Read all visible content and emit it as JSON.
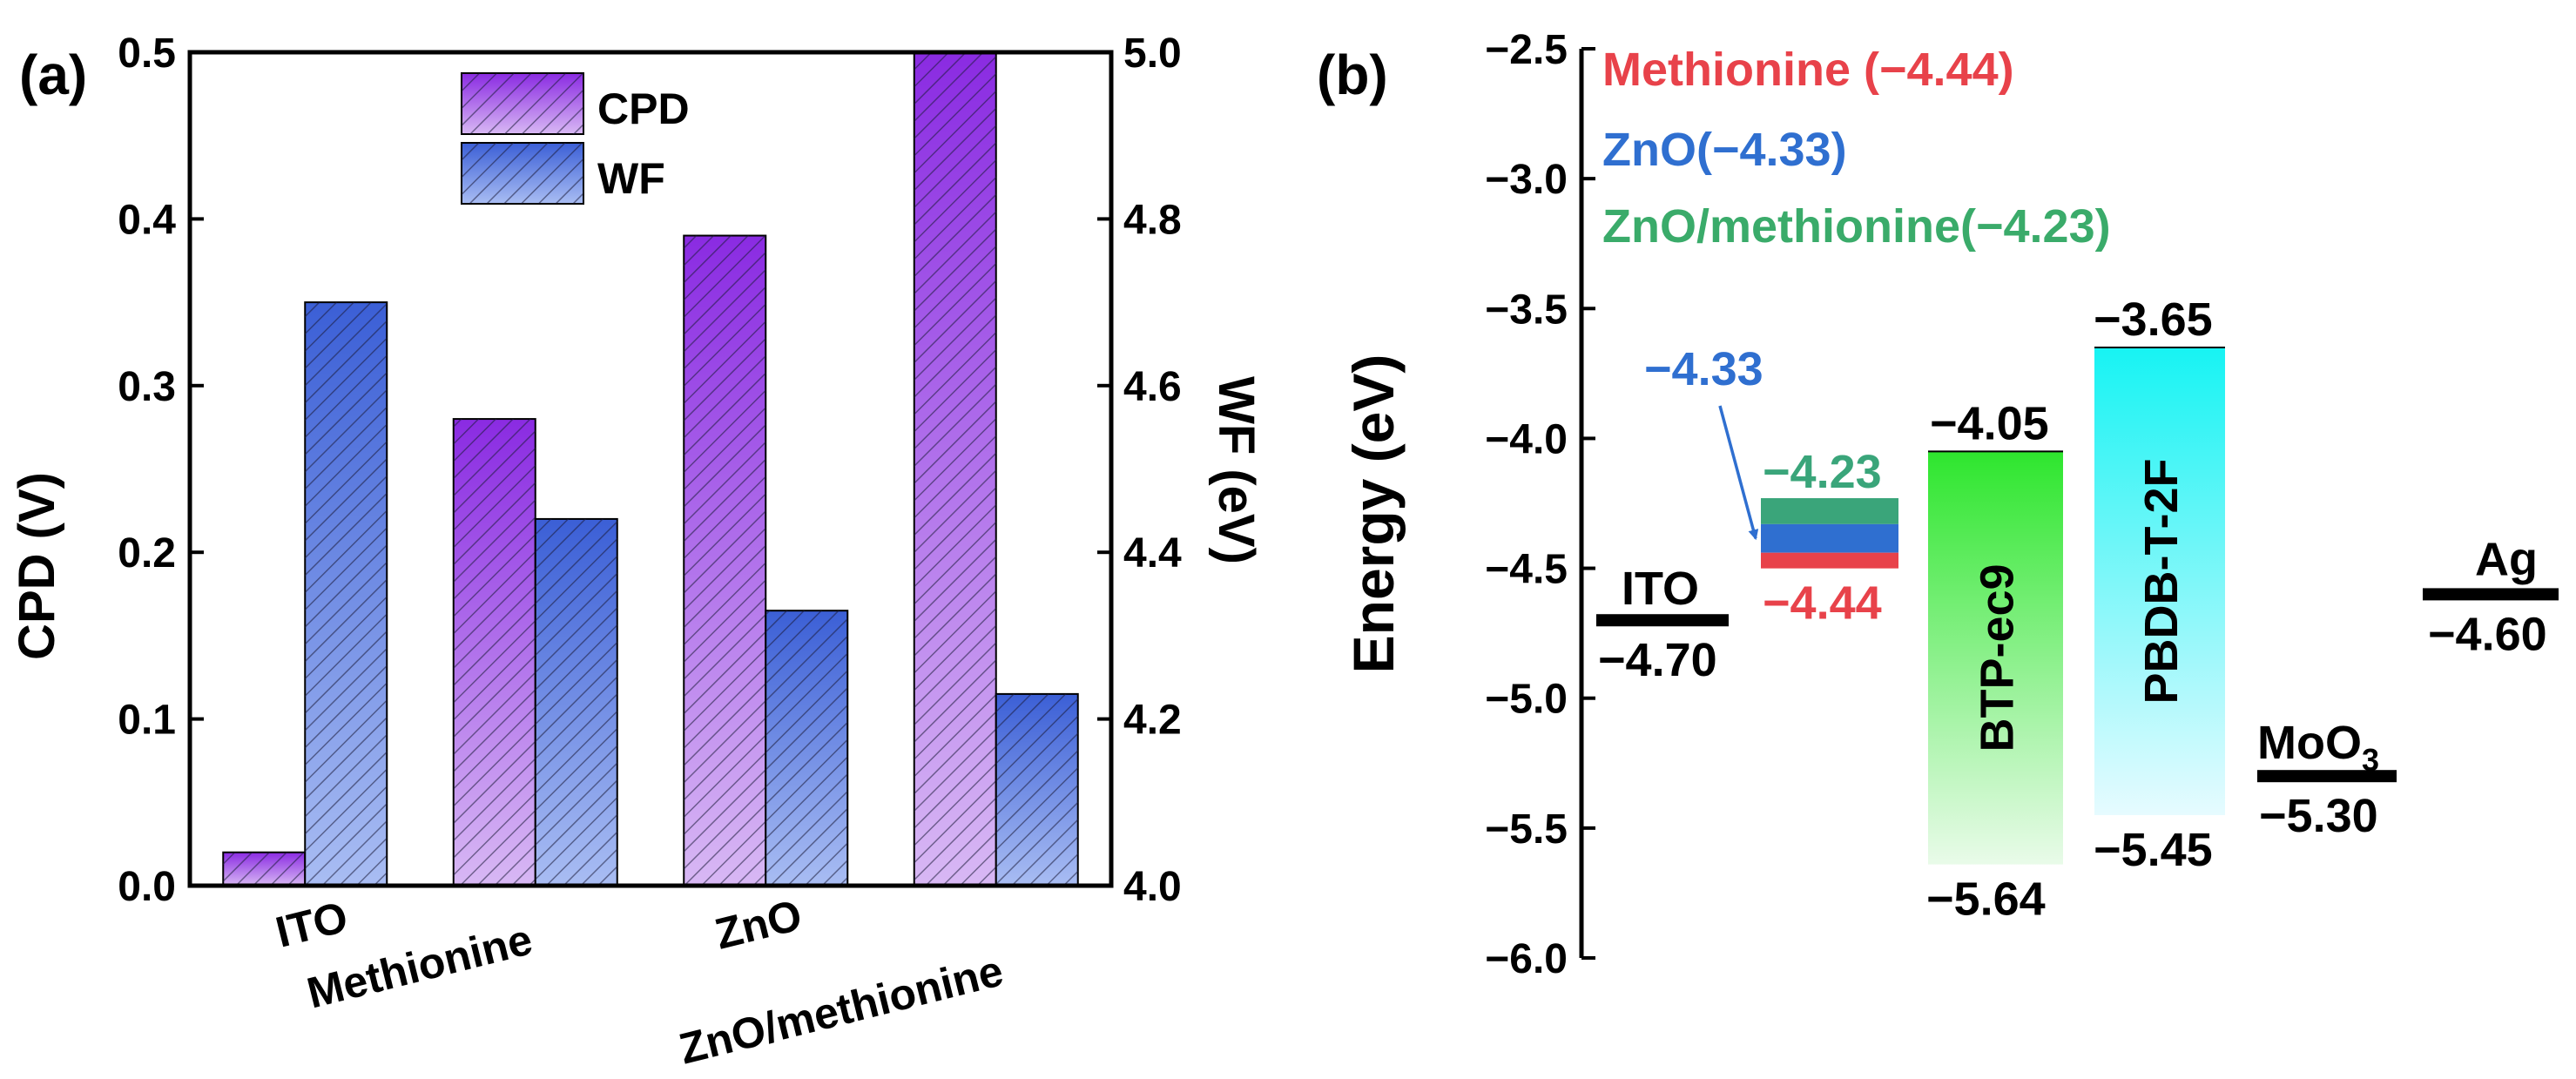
{
  "panel_a": {
    "label": "(a)",
    "legend": {
      "cpd_label": "CPD",
      "wf_label": "WF"
    }
  },
  "panel_b": {
    "label": "(b)",
    "legend_lines": [
      {
        "text": "Methionine (−4.44)",
        "color": "#e8424a"
      },
      {
        "text": "ZnO(−4.33)",
        "color": "#2f6fd0"
      },
      {
        "text": "ZnO/methionine(−4.23)",
        "color": "#3aab6a"
      }
    ]
  },
  "colors": {
    "cpd_bar": "#9b3ee8",
    "wf_bar": "#4a6fe0",
    "btp": "#33e633",
    "pbdb": "#22f2f2",
    "zno_meth": "#3aa57a",
    "zno": "#2f6fd0",
    "methionine": "#e8424a",
    "arrow": "#2f6fd0"
  },
  "chart_data": [
    {
      "type": "bar",
      "categories": [
        "ITO",
        "Methionine",
        "ZnO",
        "ZnO/methionine"
      ],
      "series": [
        {
          "name": "CPD",
          "axis": "left",
          "values": [
            0.02,
            0.28,
            0.39,
            0.5
          ]
        },
        {
          "name": "WF",
          "axis": "right",
          "values": [
            4.7,
            4.44,
            4.33,
            4.23
          ]
        }
      ],
      "ylabel": "CPD (V)",
      "ylim": [
        0,
        0.5
      ],
      "yticks": [
        "0.0",
        "0.1",
        "0.2",
        "0.3",
        "0.4",
        "0.5"
      ],
      "y2label": "WF (eV)",
      "y2lim": [
        4.0,
        5.0
      ],
      "y2ticks": [
        "4.0",
        "4.2",
        "4.4",
        "4.6",
        "4.8",
        "5.0"
      ],
      "legend": "top-center"
    },
    {
      "type": "energy-level-diagram",
      "ylabel": "Energy (eV)",
      "ylim": [
        -6.0,
        -2.5
      ],
      "yticks": [
        "−2.5",
        "−3.0",
        "−3.5",
        "−4.0",
        "−4.5",
        "−5.0",
        "−5.5",
        "−6.0"
      ],
      "levels": [
        {
          "name": "ITO",
          "value": -4.7,
          "value_label": "−4.70"
        },
        {
          "name": "MoO",
          "subscript": "3",
          "value": -5.3,
          "value_label": "−5.30"
        },
        {
          "name": "Ag",
          "value": -4.6,
          "value_label": "−4.60"
        }
      ],
      "stack": {
        "layers": [
          {
            "name": "ZnO/methionine",
            "value": -4.23,
            "value_label": "−4.23"
          },
          {
            "name": "ZnO",
            "value": -4.33,
            "value_label": "−4.33"
          },
          {
            "name": "Methionine",
            "value": -4.44,
            "value_label": "−4.44"
          }
        ]
      },
      "bands": [
        {
          "name": "BTP-ec9",
          "top": -4.05,
          "bottom": -5.64,
          "top_label": "−4.05",
          "bottom_label": "−5.64"
        },
        {
          "name": "PBDB-T-2F",
          "top": -3.65,
          "bottom": -5.45,
          "top_label": "−3.65",
          "bottom_label": "−5.45"
        }
      ]
    }
  ]
}
